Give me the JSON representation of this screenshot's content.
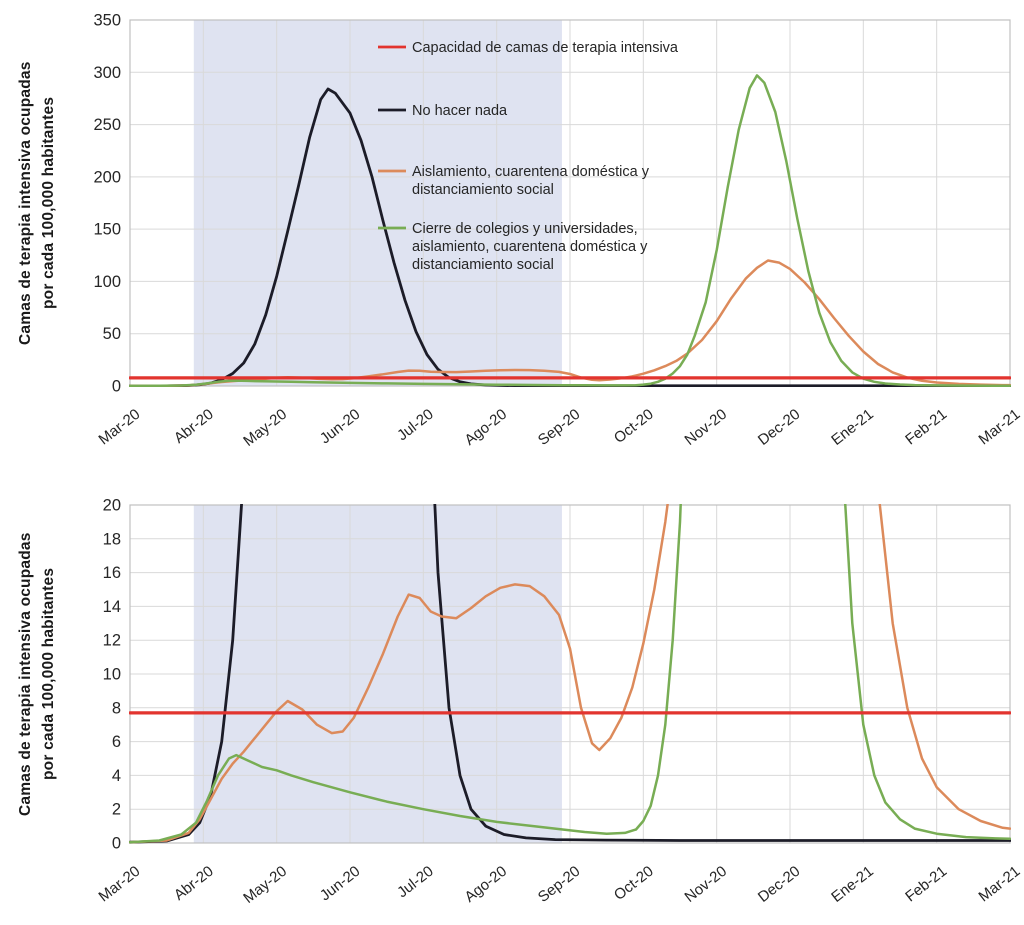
{
  "page": {
    "background": "#ffffff",
    "text_color": "#262626"
  },
  "y_axis_label": {
    "line1": "Camas de terapia intensiva ocupadas",
    "line2": "por  cada 100,000 habitantes"
  },
  "colors": {
    "capacity_red": "#e2342f",
    "do_nothing_black": "#1c1c28",
    "isolation_orange": "#dc8a5b",
    "school_closure_green": "#78ad54",
    "shading": "#dfe3f1",
    "grid": "#d9d9d9",
    "axis_border": "#c0c0c0",
    "tick_text": "#262626"
  },
  "legend": {
    "items": [
      {
        "id": "capacity",
        "color": "#e2342f",
        "lines": [
          "Capacidad de camas de terapia intensiva"
        ]
      },
      {
        "id": "do-nothing",
        "color": "#1c1c28",
        "lines": [
          "No hacer nada"
        ]
      },
      {
        "id": "isolation",
        "color": "#dc8a5b",
        "lines": [
          "Aislamiento, cuarentena  doméstica y",
          "distanciamiento social"
        ]
      },
      {
        "id": "school-closure",
        "color": "#78ad54",
        "lines": [
          "Cierre de colegios y universidades,",
          "aislamiento, cuarentena  doméstica y",
          "distanciamiento social"
        ]
      }
    ]
  },
  "chart_data": [
    {
      "name": "icu-beds-full-scale",
      "type": "line",
      "title": "",
      "xlabel": "",
      "ylabel": "Camas de terapia intensiva ocupadas por  cada 100,000 habitantes",
      "x_tick_labels": [
        "Mar-20",
        "Abr-20",
        "May-20",
        "Jun-20",
        "Jul-20",
        "Ago-20",
        "Sep-20",
        "Oct-20",
        "Nov-20",
        "Dec-20",
        "Ene-21",
        "Feb-21",
        "Mar-21"
      ],
      "x_range_months": [
        0,
        12
      ],
      "ylim": [
        0,
        350
      ],
      "y_ticks": [
        0,
        50,
        100,
        150,
        200,
        250,
        300,
        350
      ],
      "grid": true,
      "legend_position": "inside-top-center",
      "shaded_span_months": [
        0.87,
        5.89
      ],
      "series": [
        {
          "id": "capacity",
          "name": "Capacidad de camas de terapia intensiva",
          "color": "#e2342f",
          "points": [
            [
              0,
              7.7
            ],
            [
              12,
              7.7
            ]
          ]
        },
        {
          "id": "do-nothing",
          "name": "No hacer nada",
          "color": "#1c1c28",
          "points": [
            [
              0,
              0.05
            ],
            [
              0.5,
              0.12
            ],
            [
              0.8,
              0.5
            ],
            [
              0.95,
              1.2
            ],
            [
              1.1,
              2.8
            ],
            [
              1.25,
              6
            ],
            [
              1.4,
              12
            ],
            [
              1.55,
              22
            ],
            [
              1.7,
              40
            ],
            [
              1.85,
              68
            ],
            [
              2,
              105
            ],
            [
              2.15,
              148
            ],
            [
              2.3,
              192
            ],
            [
              2.45,
              238
            ],
            [
              2.6,
              274
            ],
            [
              2.7,
              284
            ],
            [
              2.8,
              280
            ],
            [
              3,
              261
            ],
            [
              3.15,
              235
            ],
            [
              3.3,
              200
            ],
            [
              3.45,
              158
            ],
            [
              3.6,
              118
            ],
            [
              3.75,
              82
            ],
            [
              3.9,
              52
            ],
            [
              4.05,
              30
            ],
            [
              4.2,
              16
            ],
            [
              4.35,
              8
            ],
            [
              4.5,
              4
            ],
            [
              4.65,
              2
            ],
            [
              4.85,
              1
            ],
            [
              5.1,
              0.5
            ],
            [
              5.4,
              0.3
            ],
            [
              5.8,
              0.2
            ],
            [
              6.5,
              0.17
            ],
            [
              7.5,
              0.15
            ],
            [
              9,
              0.15
            ],
            [
              10.5,
              0.15
            ],
            [
              12,
              0.15
            ]
          ]
        },
        {
          "id": "isolation",
          "name": "Aislamiento, cuarentena doméstica y distanciamiento social",
          "color": "#dc8a5b",
          "points": [
            [
              0,
              0.05
            ],
            [
              0.5,
              0.15
            ],
            [
              0.8,
              0.6
            ],
            [
              0.95,
              1.4
            ],
            [
              1.1,
              2.6
            ],
            [
              1.25,
              3.8
            ],
            [
              1.4,
              4.7
            ],
            [
              1.55,
              5.4
            ],
            [
              1.7,
              6.2
            ],
            [
              1.85,
              7
            ],
            [
              2,
              7.8
            ],
            [
              2.15,
              8.4
            ],
            [
              2.35,
              7.9
            ],
            [
              2.55,
              7
            ],
            [
              2.75,
              6.5
            ],
            [
              2.9,
              6.6
            ],
            [
              3.05,
              7.4
            ],
            [
              3.25,
              9.2
            ],
            [
              3.45,
              11.2
            ],
            [
              3.65,
              13.4
            ],
            [
              3.8,
              14.7
            ],
            [
              3.95,
              14.5
            ],
            [
              4.1,
              13.7
            ],
            [
              4.25,
              13.4
            ],
            [
              4.45,
              13.3
            ],
            [
              4.65,
              13.9
            ],
            [
              4.85,
              14.6
            ],
            [
              5.05,
              15.1
            ],
            [
              5.25,
              15.3
            ],
            [
              5.45,
              15.2
            ],
            [
              5.65,
              14.6
            ],
            [
              5.85,
              13.5
            ],
            [
              6,
              11.5
            ],
            [
              6.15,
              8
            ],
            [
              6.3,
              5.9
            ],
            [
              6.4,
              5.5
            ],
            [
              6.55,
              6.2
            ],
            [
              6.7,
              7.4
            ],
            [
              6.85,
              9.2
            ],
            [
              7,
              11.8
            ],
            [
              7.15,
              15
            ],
            [
              7.3,
              19
            ],
            [
              7.45,
              24
            ],
            [
              7.6,
              31
            ],
            [
              7.8,
              44
            ],
            [
              8,
              62
            ],
            [
              8.2,
              84
            ],
            [
              8.4,
              103
            ],
            [
              8.55,
              113
            ],
            [
              8.7,
              120
            ],
            [
              8.85,
              118
            ],
            [
              9,
              112
            ],
            [
              9.2,
              99
            ],
            [
              9.4,
              83
            ],
            [
              9.6,
              65
            ],
            [
              9.8,
              48
            ],
            [
              10,
              33
            ],
            [
              10.2,
              21
            ],
            [
              10.4,
              13
            ],
            [
              10.6,
              8
            ],
            [
              10.8,
              5
            ],
            [
              11,
              3.3
            ],
            [
              11.3,
              2
            ],
            [
              11.6,
              1.3
            ],
            [
              11.9,
              0.9
            ],
            [
              12,
              0.85
            ]
          ]
        },
        {
          "id": "school-closure",
          "name": "Cierre de colegios y universidades, aislamiento, cuarentena doméstica y distanciamiento social",
          "color": "#78ad54",
          "points": [
            [
              0,
              0.05
            ],
            [
              0.4,
              0.15
            ],
            [
              0.7,
              0.5
            ],
            [
              0.9,
              1.2
            ],
            [
              1.05,
              2.5
            ],
            [
              1.2,
              4
            ],
            [
              1.35,
              5
            ],
            [
              1.45,
              5.2
            ],
            [
              1.6,
              4.9
            ],
            [
              1.8,
              4.5
            ],
            [
              2,
              4.3
            ],
            [
              2.2,
              4
            ],
            [
              2.5,
              3.6
            ],
            [
              3,
              3
            ],
            [
              3.5,
              2.45
            ],
            [
              4,
              2
            ],
            [
              4.5,
              1.6
            ],
            [
              5,
              1.25
            ],
            [
              5.5,
              1
            ],
            [
              5.9,
              0.8
            ],
            [
              6.2,
              0.65
            ],
            [
              6.5,
              0.55
            ],
            [
              6.75,
              0.6
            ],
            [
              6.9,
              0.8
            ],
            [
              7,
              1.3
            ],
            [
              7.1,
              2.2
            ],
            [
              7.2,
              4
            ],
            [
              7.3,
              7
            ],
            [
              7.4,
              12
            ],
            [
              7.5,
              19
            ],
            [
              7.6,
              30
            ],
            [
              7.7,
              48
            ],
            [
              7.85,
              80
            ],
            [
              8,
              130
            ],
            [
              8.15,
              190
            ],
            [
              8.3,
              245
            ],
            [
              8.45,
              285
            ],
            [
              8.55,
              297
            ],
            [
              8.65,
              290
            ],
            [
              8.8,
              262
            ],
            [
              8.95,
              215
            ],
            [
              9.1,
              160
            ],
            [
              9.25,
              110
            ],
            [
              9.4,
              70
            ],
            [
              9.55,
              42
            ],
            [
              9.7,
              24
            ],
            [
              9.85,
              13
            ],
            [
              10,
              7
            ],
            [
              10.15,
              4
            ],
            [
              10.3,
              2.4
            ],
            [
              10.5,
              1.4
            ],
            [
              10.7,
              0.85
            ],
            [
              11,
              0.55
            ],
            [
              11.4,
              0.35
            ],
            [
              11.8,
              0.27
            ],
            [
              12,
              0.25
            ]
          ]
        }
      ]
    },
    {
      "name": "icu-beds-zoomed-0-20",
      "type": "line",
      "title": "",
      "xlabel": "",
      "ylabel": "Camas de terapia intensiva ocupadas por  cada 100,000 habitantes",
      "x_tick_labels": [
        "Mar-20",
        "Abr-20",
        "May-20",
        "Jun-20",
        "Jul-20",
        "Ago-20",
        "Sep-20",
        "Oct-20",
        "Nov-20",
        "Dec-20",
        "Ene-21",
        "Feb-21",
        "Mar-21"
      ],
      "x_range_months": [
        0,
        12
      ],
      "ylim": [
        0,
        20
      ],
      "y_ticks": [
        0,
        2,
        4,
        6,
        8,
        10,
        12,
        14,
        16,
        18,
        20
      ],
      "grid": true,
      "legend_position": "none",
      "shaded_span_months": [
        0.87,
        5.89
      ],
      "series_from": 0,
      "note": "Same four series as the first chart, y-axis clipped to 0-20"
    }
  ]
}
